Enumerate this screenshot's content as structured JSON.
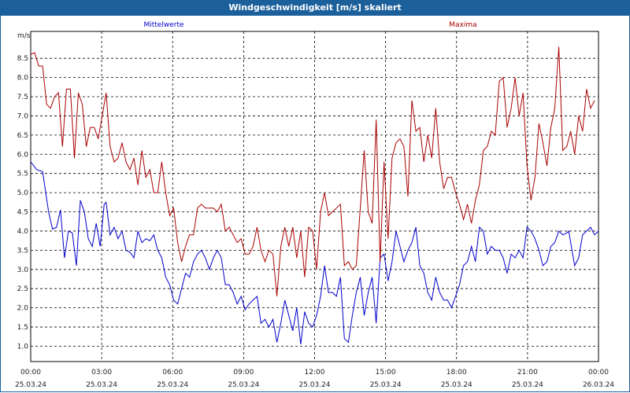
{
  "window": {
    "title": "Windgeschwindigkeit [m/s] skaliert"
  },
  "chart_data": {
    "type": "line",
    "title": "Windgeschwindigkeit [m/s] skaliert",
    "ylabel": "m/s",
    "ylim": [
      0.6,
      9.2
    ],
    "yticks": [
      "1.0",
      "1.5",
      "2.0",
      "2.5",
      "3.0",
      "3.5",
      "4.0",
      "4.5",
      "5.0",
      "5.5",
      "6.0",
      "6.5",
      "7.0",
      "7.5",
      "8.0",
      "8.5"
    ],
    "xticks": [
      {
        "time": "00:00",
        "date": "25.03.24"
      },
      {
        "time": "03:00",
        "date": "25.03.24"
      },
      {
        "time": "06:00",
        "date": "25.03.24"
      },
      {
        "time": "09:00",
        "date": "25.03.24"
      },
      {
        "time": "12:00",
        "date": "25.03.24"
      },
      {
        "time": "15:00",
        "date": "25.03.24"
      },
      {
        "time": "18:00",
        "date": "25.03.24"
      },
      {
        "time": "21:00",
        "date": "25.03.24"
      },
      {
        "time": "00:00",
        "date": "26.03.24"
      }
    ],
    "x_unit": "hours since 25.03.24 00:00",
    "grid": true,
    "series": [
      {
        "name": "Mittelwerte",
        "color": "#0000cc",
        "values": [
          [
            0.0,
            5.8
          ],
          [
            0.3,
            5.6
          ],
          [
            0.6,
            5.55
          ],
          [
            0.9,
            4.5
          ],
          [
            1.1,
            4.05
          ],
          [
            1.3,
            4.1
          ],
          [
            1.5,
            4.55
          ],
          [
            1.7,
            3.3
          ],
          [
            1.9,
            4.0
          ],
          [
            2.1,
            3.95
          ],
          [
            2.3,
            3.1
          ],
          [
            2.5,
            4.8
          ],
          [
            2.7,
            4.5
          ],
          [
            2.9,
            3.8
          ],
          [
            3.1,
            3.6
          ],
          [
            3.3,
            4.2
          ],
          [
            3.5,
            3.6
          ],
          [
            3.7,
            4.7
          ],
          [
            3.8,
            4.75
          ],
          [
            4.0,
            3.9
          ],
          [
            4.2,
            4.1
          ],
          [
            4.4,
            3.8
          ],
          [
            4.6,
            4.0
          ],
          [
            4.8,
            3.5
          ],
          [
            5.0,
            3.45
          ],
          [
            5.2,
            3.3
          ],
          [
            5.4,
            4.0
          ],
          [
            5.6,
            3.7
          ],
          [
            5.8,
            3.8
          ],
          [
            6.0,
            3.75
          ],
          [
            6.2,
            3.9
          ],
          [
            6.4,
            3.5
          ],
          [
            6.6,
            3.3
          ],
          [
            6.8,
            2.8
          ],
          [
            7.0,
            2.6
          ],
          [
            7.2,
            2.2
          ],
          [
            7.4,
            2.1
          ],
          [
            7.6,
            2.5
          ],
          [
            7.8,
            2.9
          ],
          [
            8.0,
            2.8
          ],
          [
            8.2,
            3.2
          ],
          [
            8.4,
            3.4
          ],
          [
            8.6,
            3.5
          ],
          [
            8.8,
            3.3
          ],
          [
            9.0,
            3.0
          ],
          [
            9.2,
            3.3
          ],
          [
            9.4,
            3.5
          ],
          [
            9.6,
            3.3
          ],
          [
            9.8,
            2.6
          ],
          [
            10.0,
            2.6
          ],
          [
            10.2,
            2.4
          ],
          [
            10.4,
            2.1
          ],
          [
            10.6,
            2.3
          ],
          [
            10.8,
            1.95
          ],
          [
            11.0,
            2.1
          ],
          [
            11.2,
            2.2
          ],
          [
            11.4,
            2.3
          ],
          [
            11.6,
            1.6
          ],
          [
            11.8,
            1.7
          ],
          [
            12.0,
            1.5
          ],
          [
            12.2,
            1.7
          ],
          [
            12.4,
            1.1
          ],
          [
            12.6,
            1.6
          ],
          [
            12.8,
            2.2
          ],
          [
            13.0,
            1.8
          ],
          [
            13.2,
            1.4
          ],
          [
            13.4,
            2.0
          ],
          [
            13.6,
            1.05
          ],
          [
            13.8,
            1.9
          ],
          [
            14.0,
            1.6
          ],
          [
            14.2,
            1.5
          ],
          [
            14.4,
            1.8
          ],
          [
            14.6,
            2.3
          ],
          [
            14.8,
            3.1
          ],
          [
            15.0,
            2.4
          ],
          [
            15.2,
            2.4
          ],
          [
            15.4,
            2.3
          ],
          [
            15.6,
            2.8
          ],
          [
            15.8,
            1.2
          ],
          [
            16.0,
            1.1
          ],
          [
            16.2,
            1.8
          ],
          [
            16.4,
            2.4
          ],
          [
            16.6,
            2.8
          ],
          [
            16.8,
            1.8
          ],
          [
            17.0,
            2.4
          ],
          [
            17.2,
            2.8
          ],
          [
            17.4,
            1.6
          ],
          [
            17.6,
            3.3
          ],
          [
            17.8,
            3.4
          ],
          [
            18.0,
            2.7
          ],
          [
            18.2,
            3.2
          ],
          [
            18.4,
            4.0
          ],
          [
            18.6,
            3.6
          ],
          [
            18.8,
            3.2
          ],
          [
            19.0,
            3.5
          ],
          [
            19.2,
            3.7
          ],
          [
            19.4,
            4.1
          ],
          [
            19.6,
            3.1
          ],
          [
            19.8,
            2.9
          ],
          [
            20.0,
            2.4
          ],
          [
            20.2,
            2.2
          ],
          [
            20.4,
            2.8
          ],
          [
            20.6,
            2.4
          ],
          [
            20.8,
            2.2
          ],
          [
            21.0,
            2.2
          ],
          [
            21.2,
            2.0
          ],
          [
            21.4,
            2.3
          ],
          [
            21.6,
            2.6
          ],
          [
            21.8,
            3.1
          ],
          [
            22.0,
            3.2
          ],
          [
            22.2,
            3.6
          ],
          [
            22.4,
            3.2
          ],
          [
            22.6,
            4.1
          ],
          [
            22.8,
            4.0
          ],
          [
            23.0,
            3.4
          ],
          [
            23.2,
            3.6
          ],
          [
            23.4,
            3.5
          ],
          [
            23.6,
            3.5
          ],
          [
            23.8,
            3.3
          ],
          [
            24.0,
            2.9
          ],
          [
            24.2,
            3.4
          ],
          [
            24.4,
            3.3
          ],
          [
            24.6,
            3.5
          ],
          [
            24.8,
            3.3
          ],
          [
            25.0,
            4.1
          ],
          [
            25.2,
            4.0
          ],
          [
            25.4,
            3.8
          ],
          [
            25.6,
            3.5
          ],
          [
            25.8,
            3.1
          ],
          [
            26.0,
            3.2
          ],
          [
            26.2,
            3.6
          ],
          [
            26.4,
            3.7
          ],
          [
            26.6,
            4.0
          ],
          [
            26.8,
            3.9
          ],
          [
            27.0,
            3.95
          ],
          [
            27.1,
            4.0
          ],
          [
            27.4,
            3.1
          ],
          [
            27.6,
            3.3
          ],
          [
            27.8,
            3.9
          ],
          [
            28.0,
            4.0
          ],
          [
            28.2,
            4.1
          ],
          [
            28.4,
            3.9
          ],
          [
            28.6,
            4.0
          ]
        ]
      },
      {
        "name": "Maxima",
        "color": "#aa0000",
        "values": [
          [
            0.0,
            8.6
          ],
          [
            0.2,
            8.65
          ],
          [
            0.4,
            8.3
          ],
          [
            0.6,
            8.3
          ],
          [
            0.8,
            7.3
          ],
          [
            1.0,
            7.2
          ],
          [
            1.2,
            7.5
          ],
          [
            1.4,
            7.6
          ],
          [
            1.6,
            6.2
          ],
          [
            1.8,
            7.7
          ],
          [
            2.0,
            7.7
          ],
          [
            2.2,
            5.9
          ],
          [
            2.4,
            7.6
          ],
          [
            2.6,
            7.3
          ],
          [
            2.8,
            6.2
          ],
          [
            3.0,
            6.7
          ],
          [
            3.2,
            6.7
          ],
          [
            3.4,
            6.4
          ],
          [
            3.6,
            7.0
          ],
          [
            3.8,
            7.6
          ],
          [
            4.0,
            6.2
          ],
          [
            4.2,
            5.8
          ],
          [
            4.4,
            5.9
          ],
          [
            4.6,
            6.3
          ],
          [
            4.8,
            5.8
          ],
          [
            5.0,
            5.6
          ],
          [
            5.2,
            5.9
          ],
          [
            5.4,
            5.2
          ],
          [
            5.6,
            6.1
          ],
          [
            5.8,
            5.4
          ],
          [
            6.0,
            5.6
          ],
          [
            6.2,
            5.0
          ],
          [
            6.4,
            5.0
          ],
          [
            6.6,
            5.8
          ],
          [
            6.8,
            5.0
          ],
          [
            7.0,
            4.4
          ],
          [
            7.2,
            4.6
          ],
          [
            7.4,
            3.7
          ],
          [
            7.6,
            3.2
          ],
          [
            7.8,
            3.6
          ],
          [
            8.0,
            3.9
          ],
          [
            8.2,
            3.9
          ],
          [
            8.4,
            4.6
          ],
          [
            8.6,
            4.7
          ],
          [
            8.8,
            4.6
          ],
          [
            9.0,
            4.6
          ],
          [
            9.2,
            4.6
          ],
          [
            9.4,
            4.5
          ],
          [
            9.6,
            4.7
          ],
          [
            9.8,
            4.0
          ],
          [
            10.0,
            4.1
          ],
          [
            10.2,
            3.9
          ],
          [
            10.4,
            3.7
          ],
          [
            10.6,
            3.8
          ],
          [
            10.8,
            3.4
          ],
          [
            11.0,
            3.4
          ],
          [
            11.2,
            3.6
          ],
          [
            11.4,
            4.1
          ],
          [
            11.6,
            3.5
          ],
          [
            11.8,
            3.2
          ],
          [
            12.0,
            3.5
          ],
          [
            12.2,
            3.4
          ],
          [
            12.4,
            2.3
          ],
          [
            12.6,
            3.6
          ],
          [
            12.8,
            4.1
          ],
          [
            13.0,
            3.6
          ],
          [
            13.2,
            4.1
          ],
          [
            13.4,
            3.3
          ],
          [
            13.6,
            4.0
          ],
          [
            13.8,
            2.8
          ],
          [
            14.0,
            4.1
          ],
          [
            14.2,
            4.0
          ],
          [
            14.4,
            3.0
          ],
          [
            14.6,
            4.5
          ],
          [
            14.8,
            5.0
          ],
          [
            15.0,
            4.4
          ],
          [
            15.2,
            4.5
          ],
          [
            15.4,
            4.6
          ],
          [
            15.6,
            4.7
          ],
          [
            15.8,
            3.1
          ],
          [
            16.0,
            3.2
          ],
          [
            16.2,
            3.0
          ],
          [
            16.4,
            3.1
          ],
          [
            16.6,
            4.6
          ],
          [
            16.8,
            6.1
          ],
          [
            17.0,
            4.5
          ],
          [
            17.2,
            4.2
          ],
          [
            17.4,
            6.9
          ],
          [
            17.6,
            3.2
          ],
          [
            17.8,
            5.8
          ],
          [
            18.0,
            3.8
          ],
          [
            18.2,
            5.9
          ],
          [
            18.4,
            6.3
          ],
          [
            18.6,
            6.4
          ],
          [
            18.8,
            6.2
          ],
          [
            19.0,
            4.9
          ],
          [
            19.2,
            7.4
          ],
          [
            19.4,
            6.6
          ],
          [
            19.6,
            6.7
          ],
          [
            19.8,
            5.8
          ],
          [
            20.0,
            6.5
          ],
          [
            20.2,
            5.9
          ],
          [
            20.4,
            7.2
          ],
          [
            20.6,
            5.8
          ],
          [
            20.8,
            5.1
          ],
          [
            21.0,
            5.4
          ],
          [
            21.2,
            5.4
          ],
          [
            21.4,
            5.0
          ],
          [
            21.6,
            4.7
          ],
          [
            21.8,
            4.3
          ],
          [
            22.0,
            4.7
          ],
          [
            22.2,
            4.2
          ],
          [
            22.4,
            4.8
          ],
          [
            22.6,
            5.2
          ],
          [
            22.8,
            6.1
          ],
          [
            23.0,
            6.2
          ],
          [
            23.2,
            6.6
          ],
          [
            23.4,
            6.5
          ],
          [
            23.6,
            7.9
          ],
          [
            23.8,
            8.0
          ],
          [
            24.0,
            6.7
          ],
          [
            24.2,
            7.2
          ],
          [
            24.4,
            8.0
          ],
          [
            24.6,
            7.0
          ],
          [
            24.8,
            7.6
          ],
          [
            25.0,
            5.7
          ],
          [
            25.2,
            4.8
          ],
          [
            25.4,
            5.4
          ],
          [
            25.6,
            6.8
          ],
          [
            25.8,
            6.3
          ],
          [
            26.0,
            5.7
          ],
          [
            26.2,
            6.7
          ],
          [
            26.4,
            7.2
          ],
          [
            26.6,
            8.8
          ],
          [
            26.8,
            6.1
          ],
          [
            27.0,
            6.2
          ],
          [
            27.2,
            6.6
          ],
          [
            27.4,
            6.0
          ],
          [
            27.6,
            7.0
          ],
          [
            27.8,
            6.6
          ],
          [
            28.0,
            7.7
          ],
          [
            28.2,
            7.2
          ],
          [
            28.4,
            7.4
          ]
        ]
      }
    ]
  }
}
